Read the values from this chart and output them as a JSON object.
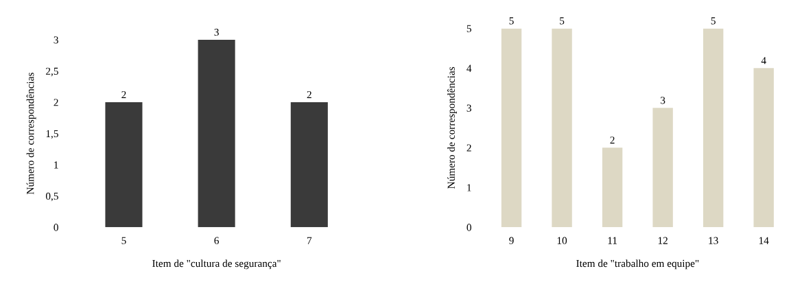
{
  "chart_data": [
    {
      "type": "bar",
      "xlabel": "Item de \"cultura de segurança\"",
      "ylabel": "Número de correspondências",
      "categories": [
        "5",
        "6",
        "7"
      ],
      "values": [
        2,
        3,
        2
      ],
      "color": "#3a3a3a",
      "ylim": [
        0,
        3
      ],
      "yticks": [
        0,
        {
          "value": 0.5,
          "label": "0,5"
        },
        1,
        {
          "value": 1.5,
          "label": "1,5"
        },
        2,
        {
          "value": 2.5,
          "label": "2,5"
        },
        3
      ],
      "data_labels": true,
      "grid": false,
      "legend": false
    },
    {
      "type": "bar",
      "xlabel": "Item de \"trabalho em equipe\"",
      "ylabel": "Número de correspondências",
      "categories": [
        "9",
        "10",
        "11",
        "12",
        "13",
        "14"
      ],
      "values": [
        5,
        5,
        2,
        3,
        5,
        4
      ],
      "color": "#ddd8c4",
      "ylim": [
        0,
        5
      ],
      "yticks": [
        0,
        1,
        2,
        3,
        4,
        5
      ],
      "data_labels": true,
      "grid": false,
      "legend": false
    }
  ]
}
